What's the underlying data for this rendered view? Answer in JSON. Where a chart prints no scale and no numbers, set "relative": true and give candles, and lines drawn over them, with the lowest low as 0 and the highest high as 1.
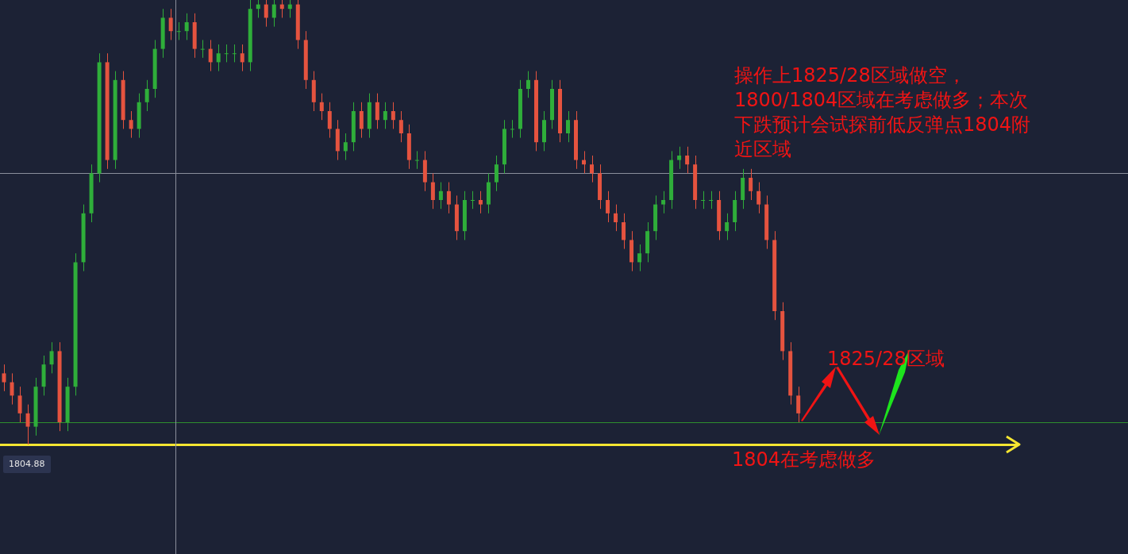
{
  "chart_data": {
    "type": "candlestick",
    "relative": true,
    "categories": [
      null,
      null,
      null,
      null,
      null,
      null,
      null,
      null,
      null,
      null,
      null,
      null,
      null,
      null,
      null,
      null,
      null,
      null,
      null,
      null,
      null,
      null,
      null,
      null,
      null,
      null,
      null,
      null,
      null,
      null,
      null,
      null,
      null,
      null,
      null,
      null,
      null,
      null,
      null,
      null,
      null,
      null,
      null,
      null,
      null,
      null,
      null,
      null,
      null,
      null,
      null,
      null,
      null,
      null,
      null,
      null,
      null,
      null,
      null,
      null,
      null,
      null,
      null,
      null,
      null,
      null,
      null,
      null,
      null,
      null,
      null,
      null,
      null,
      null,
      null,
      null,
      null,
      null,
      null,
      null,
      null,
      null,
      null,
      null,
      null,
      null,
      null,
      null,
      null,
      null,
      null,
      null,
      null,
      null,
      null,
      null,
      null,
      null,
      null,
      null,
      null,
      null,
      null,
      null,
      null,
      null,
      null,
      null,
      null,
      null,
      null,
      null,
      null,
      null,
      null,
      null,
      null,
      null,
      null,
      null,
      null,
      null,
      null,
      null,
      null,
      null,
      null,
      null,
      null,
      null,
      null,
      null,
      null,
      null,
      null,
      null,
      null,
      null,
      null,
      null,
      null,
      null
    ],
    "ohlc": [
      [
        0.16,
        0.18,
        0.12,
        0.14
      ],
      [
        0.14,
        0.16,
        0.09,
        0.11
      ],
      [
        0.11,
        0.13,
        0.05,
        0.07
      ],
      [
        0.07,
        0.09,
        0,
        0.04
      ],
      [
        0.04,
        0.15,
        0.02,
        0.13
      ],
      [
        0.13,
        0.2,
        0.11,
        0.18
      ],
      [
        0.18,
        0.23,
        0.16,
        0.21
      ],
      [
        0.21,
        0.23,
        0.03,
        0.05
      ],
      [
        0.05,
        0.15,
        0.03,
        0.13
      ],
      [
        0.13,
        0.43,
        0.11,
        0.41
      ],
      [
        0.41,
        0.54,
        0.39,
        0.52
      ],
      [
        0.52,
        0.63,
        0.5,
        0.61
      ],
      [
        0.61,
        0.88,
        0.59,
        0.86
      ],
      [
        0.86,
        0.88,
        0.62,
        0.64
      ],
      [
        0.64,
        0.84,
        0.62,
        0.82
      ],
      [
        0.82,
        0.84,
        0.71,
        0.73
      ],
      [
        0.73,
        0.75,
        0.69,
        0.71
      ],
      [
        0.71,
        0.79,
        0.69,
        0.77
      ],
      [
        0.77,
        0.82,
        0.75,
        0.8
      ],
      [
        0.8,
        0.91,
        0.78,
        0.89
      ],
      [
        0.89,
        0.98,
        0.87,
        0.96
      ],
      [
        0.96,
        0.98,
        0.91,
        0.93
      ],
      [
        0.93,
        0.95,
        0.91,
        0.93
      ],
      [
        0.93,
        0.97,
        0.91,
        0.95
      ],
      [
        0.95,
        0.97,
        0.87,
        0.89
      ],
      [
        0.89,
        0.91,
        0.87,
        0.89
      ],
      [
        0.89,
        0.91,
        0.84,
        0.86
      ],
      [
        0.86,
        0.9,
        0.84,
        0.88
      ],
      [
        0.88,
        0.9,
        0.86,
        0.88
      ],
      [
        0.88,
        0.9,
        0.86,
        0.88
      ],
      [
        0.88,
        0.9,
        0.84,
        0.86
      ],
      [
        0.86,
        1,
        0.84,
        0.98
      ],
      [
        0.98,
        1,
        0.96,
        0.99
      ],
      [
        0.99,
        1,
        0.94,
        0.96
      ],
      [
        0.96,
        1,
        0.94,
        0.99
      ],
      [
        0.99,
        1,
        0.96,
        0.98
      ],
      [
        0.98,
        1,
        0.96,
        0.99
      ],
      [
        0.99,
        1,
        0.89,
        0.91
      ],
      [
        0.91,
        0.93,
        0.8,
        0.82
      ],
      [
        0.82,
        0.84,
        0.75,
        0.77
      ],
      [
        0.77,
        0.79,
        0.73,
        0.75
      ],
      [
        0.75,
        0.77,
        0.69,
        0.71
      ],
      [
        0.71,
        0.73,
        0.64,
        0.66
      ],
      [
        0.66,
        0.7,
        0.64,
        0.68
      ],
      [
        0.68,
        0.77,
        0.66,
        0.75
      ],
      [
        0.75,
        0.77,
        0.69,
        0.71
      ],
      [
        0.71,
        0.79,
        0.69,
        0.77
      ],
      [
        0.77,
        0.79,
        0.71,
        0.73
      ],
      [
        0.73,
        0.77,
        0.71,
        0.75
      ],
      [
        0.75,
        0.77,
        0.71,
        0.73
      ],
      [
        0.73,
        0.75,
        0.68,
        0.7
      ],
      [
        0.7,
        0.72,
        0.62,
        0.64
      ],
      [
        0.64,
        0.66,
        0.62,
        0.64
      ],
      [
        0.64,
        0.66,
        0.57,
        0.59
      ],
      [
        0.59,
        0.61,
        0.53,
        0.55
      ],
      [
        0.55,
        0.59,
        0.53,
        0.57
      ],
      [
        0.57,
        0.59,
        0.52,
        0.54
      ],
      [
        0.54,
        0.56,
        0.46,
        0.48
      ],
      [
        0.48,
        0.57,
        0.46,
        0.55
      ],
      [
        0.55,
        0.57,
        0.53,
        0.55
      ],
      [
        0.55,
        0.57,
        0.52,
        0.54
      ],
      [
        0.54,
        0.61,
        0.52,
        0.59
      ],
      [
        0.59,
        0.65,
        0.57,
        0.63
      ],
      [
        0.63,
        0.73,
        0.61,
        0.71
      ],
      [
        0.71,
        0.73,
        0.69,
        0.71
      ],
      [
        0.71,
        0.82,
        0.69,
        0.8
      ],
      [
        0.8,
        0.84,
        0.78,
        0.82
      ],
      [
        0.82,
        0.84,
        0.66,
        0.68
      ],
      [
        0.68,
        0.75,
        0.66,
        0.73
      ],
      [
        0.73,
        0.82,
        0.71,
        0.8
      ],
      [
        0.8,
        0.82,
        0.68,
        0.7
      ],
      [
        0.7,
        0.75,
        0.68,
        0.73
      ],
      [
        0.73,
        0.75,
        0.62,
        0.64
      ],
      [
        0.64,
        0.66,
        0.61,
        0.63
      ],
      [
        0.63,
        0.65,
        0.59,
        0.61
      ],
      [
        0.61,
        0.63,
        0.53,
        0.55
      ],
      [
        0.55,
        0.57,
        0.5,
        0.52
      ],
      [
        0.52,
        0.54,
        0.48,
        0.5
      ],
      [
        0.5,
        0.52,
        0.44,
        0.46
      ],
      [
        0.46,
        0.48,
        0.39,
        0.41
      ],
      [
        0.41,
        0.45,
        0.39,
        0.43
      ],
      [
        0.43,
        0.5,
        0.41,
        0.48
      ],
      [
        0.48,
        0.56,
        0.46,
        0.54
      ],
      [
        0.54,
        0.57,
        0.52,
        0.55
      ],
      [
        0.55,
        0.66,
        0.53,
        0.64
      ],
      [
        0.64,
        0.67,
        0.62,
        0.65
      ],
      [
        0.65,
        0.67,
        0.61,
        0.63
      ],
      [
        0.63,
        0.65,
        0.53,
        0.55
      ],
      [
        0.55,
        0.57,
        0.53,
        0.55
      ],
      [
        0.55,
        0.57,
        0.53,
        0.55
      ],
      [
        0.55,
        0.57,
        0.46,
        0.48
      ],
      [
        0.48,
        0.52,
        0.46,
        0.5
      ],
      [
        0.5,
        0.57,
        0.48,
        0.55
      ],
      [
        0.55,
        0.62,
        0.53,
        0.6
      ],
      [
        0.6,
        0.62,
        0.55,
        0.57
      ],
      [
        0.57,
        0.59,
        0.52,
        0.54
      ],
      [
        0.54,
        0.56,
        0.44,
        0.46
      ],
      [
        0.46,
        0.48,
        0.28,
        0.3
      ],
      [
        0.3,
        0.32,
        0.19,
        0.21
      ],
      [
        0.21,
        0.23,
        0.09,
        0.11
      ],
      [
        0.11,
        0.13,
        0.05,
        0.07
      ],
      null,
      null,
      null,
      null,
      null,
      null,
      null,
      null,
      null,
      null,
      null,
      null,
      null,
      null,
      null,
      null,
      null,
      null,
      null,
      null,
      null,
      null,
      null,
      null,
      null,
      null,
      null,
      null,
      null,
      null,
      null,
      null,
      null,
      null,
      null,
      null,
      null,
      null,
      null,
      null,
      null
    ],
    "ref_lines": [
      {
        "axis": "y",
        "value": 0.61,
        "color": "#8a8f9c"
      },
      {
        "axis": "y",
        "value": 0.05,
        "color": "#2f8f2f"
      },
      {
        "axis": "y",
        "value": 0,
        "color": "#f5e631"
      }
    ],
    "annotations": [
      "操作上1825/28区域做空，1800/1804区域在考虑做多；本次下跌预计会试探前低反弹点1804附近区域",
      "1825/28区域",
      "1804在考虑做多",
      "1804.88"
    ]
  }
}
